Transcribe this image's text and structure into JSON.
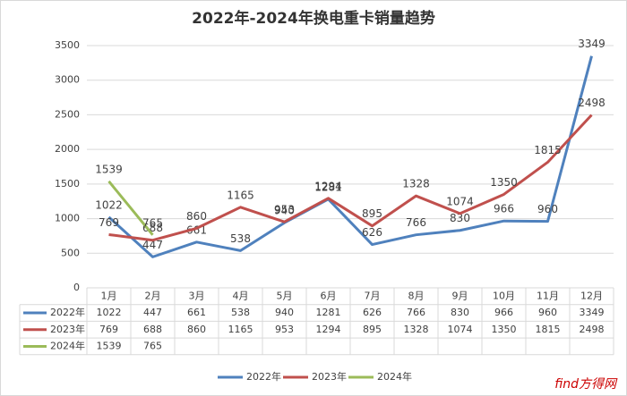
{
  "chart_data": {
    "type": "line",
    "title": "2022年-2024年换电重卡销量趋势",
    "categories": [
      "1月",
      "2月",
      "3月",
      "4月",
      "5月",
      "6月",
      "7月",
      "8月",
      "9月",
      "10月",
      "11月",
      "12月"
    ],
    "series": [
      {
        "name": "2022年",
        "color": "#4f81bd",
        "values": [
          1022,
          447,
          661,
          538,
          940,
          1281,
          626,
          766,
          830,
          966,
          960,
          3349
        ]
      },
      {
        "name": "2023年",
        "color": "#c0504d",
        "values": [
          769,
          688,
          860,
          1165,
          953,
          1294,
          895,
          1328,
          1074,
          1350,
          1815,
          2498
        ]
      },
      {
        "name": "2024年",
        "color": "#9bbb59",
        "values": [
          1539,
          765,
          null,
          null,
          null,
          null,
          null,
          null,
          null,
          null,
          null,
          null
        ]
      }
    ],
    "ylim": [
      0,
      3500
    ],
    "yticks": [
      0,
      500,
      1000,
      1500,
      2000,
      2500,
      3000,
      3500
    ],
    "grid": true,
    "legend": "bottom",
    "data_table": true,
    "watermark": "find方得网"
  }
}
